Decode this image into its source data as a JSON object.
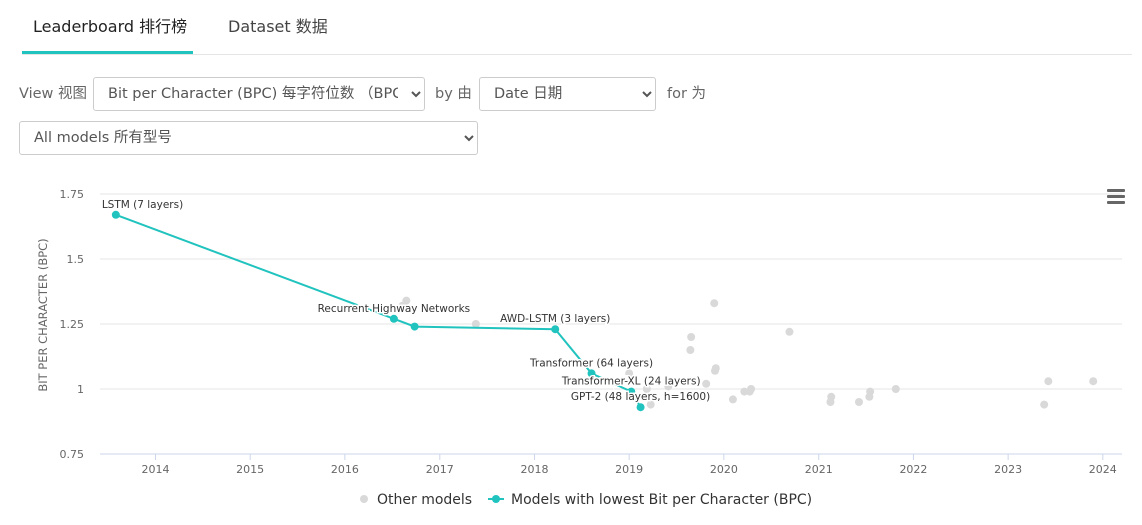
{
  "tabs": [
    {
      "label": "Leaderboard 排行榜",
      "active": true
    },
    {
      "label": "Dataset 数据",
      "active": false
    }
  ],
  "controls": {
    "view_label": "View 视图",
    "metric_selected": "Bit per Character (BPC) 每字符位数 （BPC)",
    "by_label": "by 由",
    "axis_selected": "Date 日期",
    "for_label": "for 为",
    "models_selected": "All models 所有型号"
  },
  "colors": {
    "accent": "#21c3be",
    "other": "#d9d9d9"
  },
  "chart_data": {
    "type": "scatter",
    "xlabel": "",
    "ylabel": "BIT PER CHARACTER (BPC)",
    "ylim": [
      0.75,
      1.75
    ],
    "yticks": [
      "0.75",
      "1",
      "1.25",
      "1.5",
      "1.75"
    ],
    "xlim": [
      "2013-06-01",
      "2024-03-15"
    ],
    "xticks": [
      "2014",
      "2015",
      "2016",
      "2017",
      "2018",
      "2019",
      "2020",
      "2021",
      "2022",
      "2023",
      "2024"
    ],
    "grid": true,
    "legend_position": "bottom",
    "legend": [
      "Other models",
      "Models with lowest Bit per Character (BPC)"
    ],
    "series": [
      {
        "name": "Other models",
        "color": "#d9d9d9",
        "points": [
          {
            "x": "2016-08-10",
            "y": 1.32
          },
          {
            "x": "2016-08-25",
            "y": 1.34
          },
          {
            "x": "2017-05-20",
            "y": 1.25
          },
          {
            "x": "2019-01-01",
            "y": 1.06
          },
          {
            "x": "2019-03-10",
            "y": 1.0
          },
          {
            "x": "2019-03-25",
            "y": 0.94
          },
          {
            "x": "2019-06-01",
            "y": 1.01
          },
          {
            "x": "2019-08-25",
            "y": 1.15
          },
          {
            "x": "2019-08-28",
            "y": 1.2
          },
          {
            "x": "2019-10-05",
            "y": 0.97
          },
          {
            "x": "2019-10-25",
            "y": 1.02
          },
          {
            "x": "2019-11-25",
            "y": 1.33
          },
          {
            "x": "2019-11-28",
            "y": 1.07
          },
          {
            "x": "2019-12-01",
            "y": 1.08
          },
          {
            "x": "2020-02-05",
            "y": 0.96
          },
          {
            "x": "2020-03-20",
            "y": 0.99
          },
          {
            "x": "2020-04-10",
            "y": 0.99
          },
          {
            "x": "2020-04-15",
            "y": 1.0
          },
          {
            "x": "2020-09-10",
            "y": 1.22
          },
          {
            "x": "2021-02-15",
            "y": 0.95
          },
          {
            "x": "2021-02-18",
            "y": 0.97
          },
          {
            "x": "2021-06-05",
            "y": 0.95
          },
          {
            "x": "2021-07-15",
            "y": 0.97
          },
          {
            "x": "2021-07-18",
            "y": 0.99
          },
          {
            "x": "2021-10-25",
            "y": 1.0
          },
          {
            "x": "2023-05-20",
            "y": 0.94
          },
          {
            "x": "2023-06-05",
            "y": 1.03
          },
          {
            "x": "2023-11-25",
            "y": 1.03
          }
        ]
      },
      {
        "name": "Models with lowest Bit per Character (BPC)",
        "color": "#21c3be",
        "points": [
          {
            "x": "2013-08-01",
            "y": 1.67,
            "label": "LSTM (7 layers)",
            "label_side": "right"
          },
          {
            "x": "2016-07-08",
            "y": 1.27,
            "label": "Recurrent Highway Networks",
            "label_side": "center"
          },
          {
            "x": "2016-09-26",
            "y": 1.24,
            "label": "",
            "label_side": "none"
          },
          {
            "x": "2018-03-22",
            "y": 1.23,
            "label": "AWD-LSTM (3 layers)",
            "label_side": "center"
          },
          {
            "x": "2018-08-09",
            "y": 1.06,
            "label": "Transformer (64 layers)",
            "label_side": "center"
          },
          {
            "x": "2019-01-09",
            "y": 0.99,
            "label": "Transformer-XL (24 layers)",
            "label_side": "center"
          },
          {
            "x": "2019-02-14",
            "y": 0.93,
            "label": "GPT-2 (48 layers, h=1600)",
            "label_side": "center"
          }
        ]
      }
    ]
  }
}
